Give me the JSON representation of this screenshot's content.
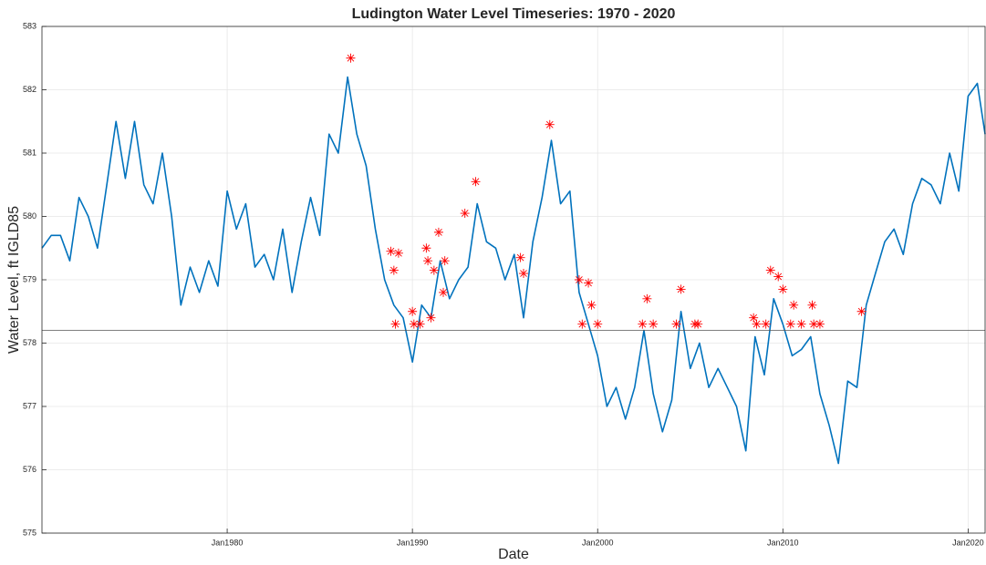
{
  "chart_data": {
    "type": "line",
    "title": "Ludington Water Level Timeseries: 1970 - 2020",
    "xlabel": "Date",
    "ylabel": "Water Level, ft IGLD85",
    "color": "#0072bd",
    "x": [
      "1970-01",
      "1970-07",
      "1971-01",
      "1971-07",
      "1972-01",
      "1972-07",
      "1973-01",
      "1973-07",
      "1974-01",
      "1974-07",
      "1975-01",
      "1975-07",
      "1976-01",
      "1976-07",
      "1977-01",
      "1977-07",
      "1978-01",
      "1978-07",
      "1979-01",
      "1979-07",
      "1980-01",
      "1980-07",
      "1981-01",
      "1981-07",
      "1982-01",
      "1982-07",
      "1983-01",
      "1983-07",
      "1984-01",
      "1984-07",
      "1985-01",
      "1985-07",
      "1986-01",
      "1986-07",
      "1987-01",
      "1987-07",
      "1988-01",
      "1988-07",
      "1989-01",
      "1989-07",
      "1990-01",
      "1990-07",
      "1991-01",
      "1991-07",
      "1992-01",
      "1992-07",
      "1993-01",
      "1993-07",
      "1994-01",
      "1994-07",
      "1995-01",
      "1995-07",
      "1996-01",
      "1996-07",
      "1997-01",
      "1997-07",
      "1998-01",
      "1998-07",
      "1999-01",
      "1999-07",
      "2000-01",
      "2000-07",
      "2001-01",
      "2001-07",
      "2002-01",
      "2002-07",
      "2003-01",
      "2003-07",
      "2004-01",
      "2004-07",
      "2005-01",
      "2005-07",
      "2006-01",
      "2006-07",
      "2007-01",
      "2007-07",
      "2008-01",
      "2008-07",
      "2009-01",
      "2009-07",
      "2010-01",
      "2010-07",
      "2011-01",
      "2011-07",
      "2012-01",
      "2012-07",
      "2013-01",
      "2013-07",
      "2014-01",
      "2014-07",
      "2015-01",
      "2015-07",
      "2016-01",
      "2016-07",
      "2017-01",
      "2017-07",
      "2018-01",
      "2018-07",
      "2019-01",
      "2019-07",
      "2020-01",
      "2020-07",
      "2020-12"
    ],
    "values": [
      579.5,
      579.7,
      579.7,
      579.3,
      580.3,
      580.0,
      579.5,
      580.5,
      581.5,
      580.6,
      581.5,
      580.5,
      580.2,
      581.0,
      580.0,
      578.6,
      579.2,
      578.8,
      579.3,
      578.9,
      580.4,
      579.8,
      580.2,
      579.2,
      579.4,
      579.0,
      579.8,
      578.8,
      579.6,
      580.3,
      579.7,
      581.3,
      581.0,
      582.2,
      581.3,
      580.8,
      579.8,
      579.0,
      578.6,
      578.4,
      577.7,
      578.6,
      578.4,
      579.3,
      578.7,
      579.0,
      579.2,
      580.2,
      579.6,
      579.5,
      579.0,
      579.4,
      578.4,
      579.6,
      580.3,
      581.2,
      580.2,
      580.4,
      578.8,
      578.3,
      577.8,
      577.0,
      577.3,
      576.8,
      577.3,
      578.2,
      577.2,
      576.6,
      577.1,
      578.5,
      577.6,
      578.0,
      577.3,
      577.6,
      577.3,
      577.0,
      576.3,
      578.1,
      577.5,
      578.7,
      578.3,
      577.8,
      577.9,
      578.1,
      577.2,
      576.7,
      576.1,
      577.4,
      577.3,
      578.6,
      579.1,
      579.6,
      579.8,
      579.4,
      580.2,
      580.6,
      580.5,
      580.2,
      581.0,
      580.4,
      581.9,
      582.1,
      581.3
    ],
    "markers": {
      "color": "#ff0000",
      "x": [
        "1986-09",
        "1997-06",
        "1993-06",
        "1992-11",
        "1991-06",
        "1990-10",
        "1989-04",
        "1988-11",
        "1989-01",
        "1990-11",
        "1991-03",
        "1991-10",
        "1995-11",
        "1996-01",
        "1999-01",
        "1999-07",
        "2009-05",
        "2009-10",
        "2010-01",
        "2004-07",
        "2002-09",
        "1989-02",
        "1990-02",
        "1990-06",
        "1991-01",
        "1999-03",
        "2000-01",
        "2002-06",
        "2003-01",
        "2004-04",
        "2005-06",
        "2008-08",
        "2009-02",
        "2010-06",
        "2011-01",
        "2011-09",
        "2012-01",
        "2014-04",
        "1990-01",
        "1991-09",
        "2010-08",
        "2011-08",
        "1999-09",
        "2008-06",
        "2005-04"
      ],
      "values": [
        582.5,
        581.45,
        580.55,
        580.05,
        579.75,
        579.5,
        579.42,
        579.45,
        579.15,
        579.3,
        579.15,
        579.3,
        579.35,
        579.1,
        579.0,
        578.95,
        579.15,
        579.05,
        578.85,
        578.85,
        578.7,
        578.3,
        578.3,
        578.3,
        578.4,
        578.3,
        578.3,
        578.3,
        578.3,
        578.3,
        578.3,
        578.3,
        578.3,
        578.3,
        578.3,
        578.3,
        578.3,
        578.5,
        578.5,
        578.8,
        578.6,
        578.6,
        578.6,
        578.4,
        578.3
      ]
    },
    "hline": 578.2,
    "xlim": [
      "1970-01",
      "2020-12"
    ],
    "xticks": [
      {
        "value": "1980-01",
        "label": "Jan1980"
      },
      {
        "value": "1990-01",
        "label": "Jan1990"
      },
      {
        "value": "2000-01",
        "label": "Jan2000"
      },
      {
        "value": "2010-01",
        "label": "Jan2010"
      },
      {
        "value": "2020-01",
        "label": "Jan2020"
      }
    ],
    "ylim": [
      575,
      583
    ],
    "yticks": [
      575,
      576,
      577,
      578,
      579,
      580,
      581,
      582,
      583
    ],
    "grid": true
  }
}
